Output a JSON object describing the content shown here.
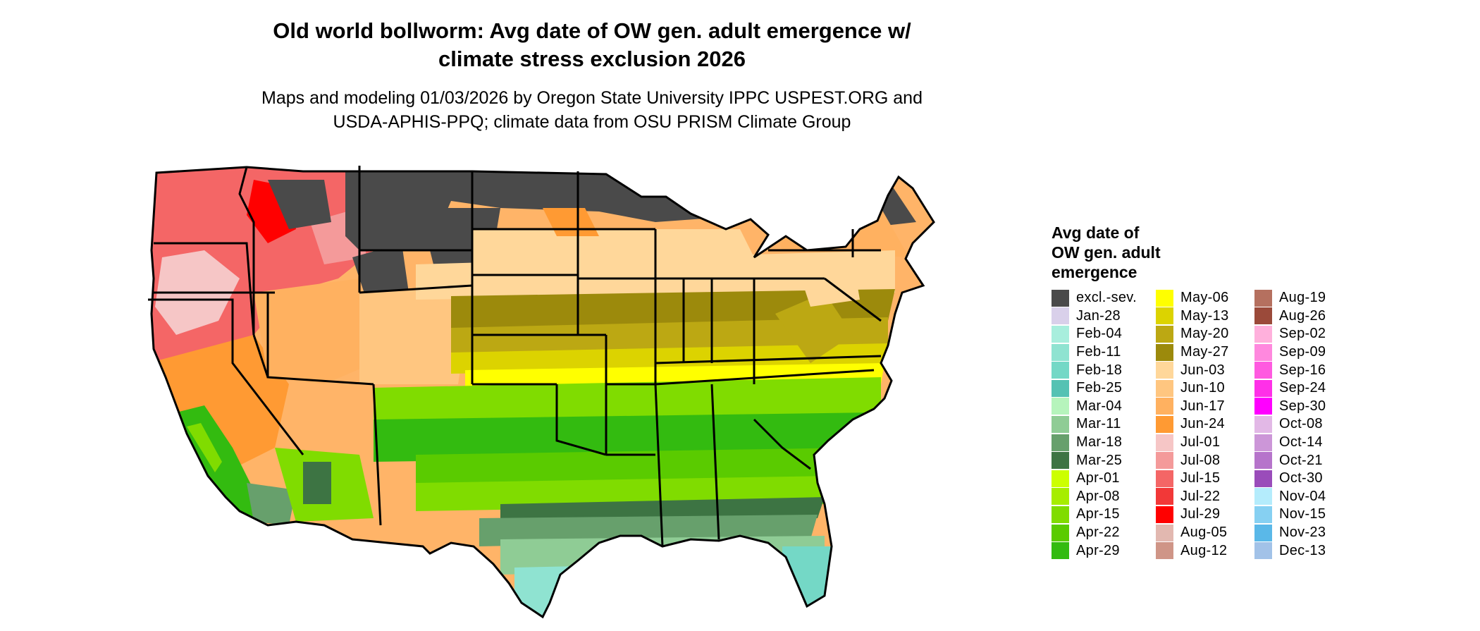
{
  "title": "Old world bollworm: Avg date of OW gen. adult emergence w/\nclimate stress exclusion 2026",
  "subtitle": "Maps and modeling 01/03/2026 by Oregon State University IPPC USPEST.ORG and\nUSDA-APHIS-PPQ; climate data from OSU PRISM Climate Group",
  "legend": {
    "title": "Avg date of\nOW gen. adult\nemergence",
    "columns": [
      [
        {
          "label": "excl.-sev.",
          "color": "#4a4a4a"
        },
        {
          "label": "Jan-28",
          "color": "#d9d0ea"
        },
        {
          "label": "Feb-04",
          "color": "#a8eedd"
        },
        {
          "label": "Feb-11",
          "color": "#8fe3d1"
        },
        {
          "label": "Feb-18",
          "color": "#74d8c6"
        },
        {
          "label": "Feb-25",
          "color": "#55c2b3"
        },
        {
          "label": "Mar-04",
          "color": "#b6f4bc"
        },
        {
          "label": "Mar-11",
          "color": "#8fcc95"
        },
        {
          "label": "Mar-18",
          "color": "#67a06c"
        },
        {
          "label": "Mar-25",
          "color": "#3d7443"
        },
        {
          "label": "Apr-01",
          "color": "#ccff00"
        },
        {
          "label": "Apr-08",
          "color": "#a6ed00"
        },
        {
          "label": "Apr-15",
          "color": "#80dc00"
        },
        {
          "label": "Apr-22",
          "color": "#5acb00"
        },
        {
          "label": "Apr-29",
          "color": "#33bb10"
        }
      ],
      [
        {
          "label": "May-06",
          "color": "#ffff00"
        },
        {
          "label": "May-13",
          "color": "#dcd300"
        },
        {
          "label": "May-20",
          "color": "#bca813"
        },
        {
          "label": "May-27",
          "color": "#9c8a0c"
        },
        {
          "label": "Jun-03",
          "color": "#ffd79a"
        },
        {
          "label": "Jun-10",
          "color": "#ffc680"
        },
        {
          "label": "Jun-17",
          "color": "#ffb160"
        },
        {
          "label": "Jun-24",
          "color": "#ff9a33"
        },
        {
          "label": "Jul-01",
          "color": "#f6c6c6"
        },
        {
          "label": "Jul-08",
          "color": "#f49a9a"
        },
        {
          "label": "Jul-15",
          "color": "#f46666"
        },
        {
          "label": "Jul-22",
          "color": "#f23838"
        },
        {
          "label": "Jul-29",
          "color": "#ff0000"
        },
        {
          "label": "Aug-05",
          "color": "#e2b8b0"
        },
        {
          "label": "Aug-12",
          "color": "#cf9587"
        }
      ],
      [
        {
          "label": "Aug-19",
          "color": "#b5705f"
        },
        {
          "label": "Aug-26",
          "color": "#9b4a3a"
        },
        {
          "label": "Sep-02",
          "color": "#ffb0dc"
        },
        {
          "label": "Sep-09",
          "color": "#ff88de"
        },
        {
          "label": "Sep-16",
          "color": "#ff5ae0"
        },
        {
          "label": "Sep-24",
          "color": "#ff30e8"
        },
        {
          "label": "Sep-30",
          "color": "#ff00ff"
        },
        {
          "label": "Oct-08",
          "color": "#e2b8e6"
        },
        {
          "label": "Oct-14",
          "color": "#cc96d8"
        },
        {
          "label": "Oct-21",
          "color": "#b674cb"
        },
        {
          "label": "Oct-30",
          "color": "#9a4cba"
        },
        {
          "label": "Nov-04",
          "color": "#b4ecfc"
        },
        {
          "label": "Nov-15",
          "color": "#86d0f2"
        },
        {
          "label": "Nov-23",
          "color": "#5ab8e8"
        },
        {
          "label": "Dec-13",
          "color": "#a2c2e8"
        }
      ]
    ]
  }
}
